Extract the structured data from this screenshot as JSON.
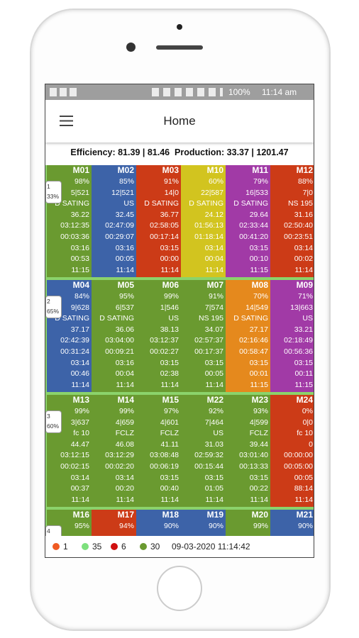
{
  "status_bar": {
    "battery": "100%",
    "time": "11:14 am"
  },
  "app_bar": {
    "title": "Home"
  },
  "summary": "Efficiency: 81.39 | 81.46  Production: 33.37 | 1201.47",
  "rows": [
    {
      "badge": [
        "1",
        "33%"
      ],
      "cells": [
        {
          "name": "M01",
          "color": "#6a9a30",
          "lines": [
            "98%",
            "5|521",
            "D SATING",
            "36.22",
            "03:12:35",
            "00:03:36",
            "03:16",
            "00:53",
            "11:15"
          ]
        },
        {
          "name": "M02",
          "color": "#3d63a8",
          "lines": [
            "85%",
            "12|521",
            "US",
            "32.45",
            "02:47:09",
            "00:29:07",
            "03:16",
            "00:05",
            "11:14"
          ]
        },
        {
          "name": "M03",
          "color": "#cc3b17",
          "lines": [
            "91%",
            "14|0",
            "D SATING",
            "36.77",
            "02:58:05",
            "00:17:14",
            "03:15",
            "00:00",
            "11:14"
          ]
        },
        {
          "name": "M10",
          "color": "#d2c41f",
          "lines": [
            "60%",
            "22|587",
            "D SATING",
            "24.12",
            "01:56:13",
            "01:18:14",
            "03:14",
            "00:04",
            "11:14"
          ]
        },
        {
          "name": "M11",
          "color": "#a13aa6",
          "lines": [
            "79%",
            "16|533",
            "D SATING",
            "29.64",
            "02:33:44",
            "00:41:20",
            "03:15",
            "00:10",
            "11:15"
          ]
        },
        {
          "name": "M12",
          "color": "#cc3b17",
          "lines": [
            "88%",
            "7|0",
            "NS 195",
            "31.16",
            "02:50:40",
            "00:23:51",
            "03:14",
            "00:02",
            "11:14"
          ]
        }
      ]
    },
    {
      "badge": [
        "2",
        "65%"
      ],
      "cells": [
        {
          "name": "M04",
          "color": "#3d63a8",
          "lines": [
            "84%",
            "9|628",
            "D SATING",
            "37.17",
            "02:42:39",
            "00:31:24",
            "03:14",
            "00:46",
            "11:14"
          ]
        },
        {
          "name": "M05",
          "color": "#6a9a30",
          "lines": [
            "95%",
            "6|537",
            "D SATING",
            "36.06",
            "03:04:00",
            "00:09:21",
            "03:16",
            "00:04",
            "11:14"
          ]
        },
        {
          "name": "M06",
          "color": "#6a9a30",
          "lines": [
            "99%",
            "1|546",
            "US",
            "38.13",
            "03:12:37",
            "00:02:27",
            "03:15",
            "02:38",
            "11:14"
          ]
        },
        {
          "name": "M07",
          "color": "#6a9a30",
          "lines": [
            "91%",
            "7|574",
            "NS 195",
            "34.07",
            "02:57:37",
            "00:17:37",
            "03:15",
            "00:05",
            "11:14"
          ]
        },
        {
          "name": "M08",
          "color": "#e5891d",
          "lines": [
            "70%",
            "14|549",
            "D SATING",
            "27.17",
            "02:16:46",
            "00:58:47",
            "03:15",
            "00:01",
            "11:15"
          ]
        },
        {
          "name": "M09",
          "color": "#a13aa6",
          "lines": [
            "71%",
            "13|663",
            "US",
            "33.21",
            "02:18:49",
            "00:56:36",
            "03:15",
            "00:11",
            "11:15"
          ]
        }
      ]
    },
    {
      "badge": [
        "3",
        "60%"
      ],
      "cells": [
        {
          "name": "M13",
          "color": "#6a9a30",
          "lines": [
            "99%",
            "3|637",
            "fc 10",
            "44.47",
            "03:12:15",
            "00:02:15",
            "03:14",
            "00:37",
            "11:14"
          ]
        },
        {
          "name": "M14",
          "color": "#6a9a30",
          "lines": [
            "99%",
            "4|659",
            "FCLZ",
            "46.08",
            "03:12:29",
            "00:02:20",
            "03:14",
            "00:20",
            "11:14"
          ]
        },
        {
          "name": "M15",
          "color": "#6a9a30",
          "lines": [
            "97%",
            "4|601",
            "FCLZ",
            "41.11",
            "03:08:48",
            "00:06:19",
            "03:15",
            "00:40",
            "11:14"
          ]
        },
        {
          "name": "M22",
          "color": "#6a9a30",
          "lines": [
            "92%",
            "7|464",
            "US",
            "31.03",
            "02:59:32",
            "00:15:44",
            "03:15",
            "01:05",
            "11:14"
          ]
        },
        {
          "name": "M23",
          "color": "#6a9a30",
          "lines": [
            "93%",
            "4|599",
            "FCLZ",
            "39.44",
            "03:01:40",
            "00:13:33",
            "03:15",
            "00:22",
            "11:14"
          ]
        },
        {
          "name": "M24",
          "color": "#cc3b17",
          "lines": [
            "0%",
            "0|0",
            "fc 10",
            "0",
            "00:00:00",
            "00:05:00",
            "00:05",
            "88:14",
            "11:14"
          ]
        }
      ]
    },
    {
      "badge": [
        "4"
      ],
      "cells": [
        {
          "name": "M16",
          "color": "#6a9a30",
          "lines": [
            "95%"
          ]
        },
        {
          "name": "M17",
          "color": "#cc3b17",
          "lines": [
            "94%"
          ]
        },
        {
          "name": "M18",
          "color": "#3d63a8",
          "lines": [
            "90%"
          ]
        },
        {
          "name": "M19",
          "color": "#3d63a8",
          "lines": [
            "90%"
          ]
        },
        {
          "name": "M20",
          "color": "#6a9a30",
          "lines": [
            "99%"
          ]
        },
        {
          "name": "M21",
          "color": "#3d63a8",
          "lines": [
            "90%"
          ]
        }
      ]
    }
  ],
  "legend": {
    "items": [
      {
        "count": "1",
        "color": "#f05a22"
      },
      {
        "count": "35",
        "color": "#7de07d"
      },
      {
        "count": "6",
        "color": "#d01010"
      },
      {
        "count": "30",
        "color": "#6a9a30"
      }
    ],
    "timestamp": "09-03-2020 11:14:42"
  }
}
